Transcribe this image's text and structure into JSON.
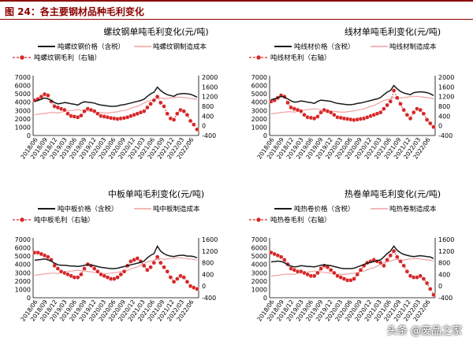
{
  "figure": {
    "title": "图 24：各主要钢材品种毛利变化",
    "watermark": "头条 @废品之家",
    "colors": {
      "price": "#1a1a1a",
      "cost": "#f0a0a0",
      "profit": "#d62728",
      "heading": "#8B0000"
    }
  },
  "chart_data": [
    {
      "type": "line",
      "title": "螺纹钢单吨毛利变化(元/吨)",
      "legend": [
        "吨螺纹钢价格（含税）",
        "吨螺纹钢制造成本",
        "吨螺纹钢毛利（右轴）"
      ],
      "x_ticks": [
        "2018/06",
        "2018/09",
        "2018/12",
        "2019/03",
        "2019/06",
        "2019/09",
        "2019/12",
        "2020/03",
        "2020/06",
        "2020/09",
        "2020/12",
        "2021/03",
        "2021/06",
        "2021/09",
        "2021/12",
        "2022/03",
        "2022/06"
      ],
      "y_left": {
        "ticks": [
          "0",
          "1000",
          "2000",
          "3000",
          "4000",
          "5000",
          "6000",
          "7000"
        ],
        "range": [
          0,
          7000
        ]
      },
      "y_right": {
        "ticks": [
          "-400",
          "0",
          "400",
          "800",
          "1200",
          "1600",
          "2000"
        ],
        "range": [
          -400,
          2000
        ]
      },
      "series": [
        {
          "name": "吨螺纹钢价格（含税）",
          "axis": "left",
          "values": [
            4100,
            4200,
            4350,
            4500,
            4400,
            4200,
            3950,
            3800,
            3850,
            3950,
            3900,
            3800,
            3750,
            3650,
            3900,
            4050,
            4000,
            3950,
            3900,
            3750,
            3650,
            3600,
            3550,
            3500,
            3500,
            3550,
            3650,
            3700,
            3800,
            3900,
            4000,
            4100,
            4200,
            4350,
            4700,
            5000,
            5200,
            5800,
            5400,
            5100,
            4900,
            4800,
            4700,
            4950,
            5000,
            5050,
            5000,
            4950,
            4800,
            4600
          ]
        },
        {
          "name": "吨螺纹钢制造成本",
          "axis": "left",
          "values": [
            2500,
            2550,
            2600,
            2650,
            2700,
            2750,
            2750,
            2700,
            2800,
            2900,
            2950,
            3000,
            3050,
            3100,
            3050,
            3000,
            2950,
            2900,
            2850,
            2800,
            2750,
            2700,
            2700,
            2750,
            2800,
            2850,
            2950,
            3000,
            3100,
            3250,
            3400,
            3500,
            3700,
            3900,
            4100,
            4200,
            4300,
            4450,
            4500,
            4400,
            4450,
            4500,
            4550,
            4600,
            4600,
            4550,
            4500,
            4450,
            4400,
            4300
          ]
        },
        {
          "name": "吨螺纹钢毛利（右轴）",
          "axis": "right",
          "values": [
            1050,
            1100,
            1200,
            1300,
            1250,
            1000,
            800,
            750,
            700,
            650,
            500,
            400,
            380,
            350,
            420,
            600,
            700,
            650,
            600,
            500,
            400,
            380,
            350,
            320,
            300,
            280,
            300,
            320,
            350,
            400,
            450,
            500,
            550,
            600,
            750,
            900,
            1050,
            1200,
            950,
            800,
            500,
            300,
            250,
            500,
            650,
            600,
            450,
            200,
            50,
            -150
          ]
        }
      ]
    },
    {
      "type": "line",
      "title": "线材单吨毛利变化(元/吨)",
      "legend": [
        "吨线材价格（含税）",
        "吨线材制造成本",
        "吨线材毛利（右轴）"
      ],
      "x_ticks": [
        "2018/06",
        "2018/09",
        "2018/12",
        "2019/03",
        "2019/06",
        "2019/09",
        "2019/12",
        "2020/03",
        "2020/06",
        "2020/09",
        "2020/12",
        "2021/03",
        "2021/06",
        "2021/09",
        "2021/12",
        "2022/03",
        "2022/06"
      ],
      "y_left": {
        "ticks": [
          "0",
          "1000",
          "2000",
          "3000",
          "4000",
          "5000",
          "6000",
          "7000"
        ],
        "range": [
          0,
          7000
        ]
      },
      "y_right": {
        "ticks": [
          "-400",
          "0",
          "400",
          "800",
          "1200",
          "1600",
          "2000"
        ],
        "range": [
          -400,
          2000
        ]
      },
      "series": [
        {
          "name": "吨线材价格（含税）",
          "axis": "left",
          "values": [
            4300,
            4400,
            4550,
            4700,
            4600,
            4400,
            4150,
            4000,
            4050,
            4150,
            4100,
            4000,
            3950,
            3850,
            4100,
            4250,
            4200,
            4150,
            4100,
            3950,
            3850,
            3800,
            3750,
            3700,
            3700,
            3750,
            3850,
            3900,
            4000,
            4100,
            4200,
            4300,
            4400,
            4550,
            4900,
            5200,
            5400,
            6000,
            5600,
            5300,
            5100,
            5000,
            4900,
            5150,
            5200,
            5250,
            5200,
            5150,
            5000,
            4800
          ]
        },
        {
          "name": "吨线材制造成本",
          "axis": "left",
          "values": [
            2600,
            2650,
            2700,
            2750,
            2800,
            2850,
            2850,
            2800,
            2900,
            3000,
            3050,
            3100,
            3150,
            3200,
            3150,
            3100,
            3050,
            3000,
            2950,
            2900,
            2850,
            2800,
            2800,
            2850,
            2900,
            2950,
            3050,
            3100,
            3200,
            3350,
            3500,
            3600,
            3800,
            4000,
            4200,
            4300,
            4400,
            4550,
            4600,
            4500,
            4550,
            4600,
            4650,
            4700,
            4700,
            4650,
            4600,
            4550,
            4500,
            4400
          ]
        },
        {
          "name": "吨线材毛利（右轴）",
          "axis": "right",
          "values": [
            1000,
            1050,
            1150,
            1250,
            1200,
            950,
            750,
            700,
            650,
            600,
            450,
            350,
            330,
            300,
            380,
            550,
            650,
            600,
            550,
            450,
            350,
            330,
            300,
            280,
            260,
            240,
            260,
            280,
            300,
            350,
            400,
            450,
            500,
            550,
            700,
            850,
            1000,
            1450,
            1150,
            900,
            650,
            450,
            300,
            550,
            700,
            650,
            500,
            250,
            100,
            -50
          ]
        }
      ]
    },
    {
      "type": "line",
      "title": "中板单吨毛利变化(元/吨)",
      "legend": [
        "吨中板价格（含税）",
        "吨中板制造成本",
        "吨中板毛利（右轴）"
      ],
      "x_ticks": [
        "2018/06",
        "2018/09",
        "2018/12",
        "2019/03",
        "2019/06",
        "2019/09",
        "2019/12",
        "2020/03",
        "2020/06",
        "2020/09",
        "2020/12",
        "2021/03",
        "2021/06",
        "2021/09",
        "2021/12",
        "2022/03",
        "2022/06"
      ],
      "y_left": {
        "ticks": [
          "0",
          "1000",
          "2000",
          "3000",
          "4000",
          "5000",
          "6000",
          "7000"
        ],
        "range": [
          0,
          7000
        ]
      },
      "y_right": {
        "ticks": [
          "-400",
          "0",
          "400",
          "800",
          "1200",
          "1600"
        ],
        "range": [
          -400,
          1600
        ]
      },
      "series": [
        {
          "name": "吨中板价格（含税）",
          "axis": "left",
          "values": [
            4500,
            4550,
            4600,
            4650,
            4550,
            4400,
            4150,
            3950,
            3900,
            3900,
            3850,
            3800,
            3800,
            3750,
            3800,
            3900,
            3950,
            3900,
            3850,
            3750,
            3650,
            3600,
            3550,
            3500,
            3500,
            3550,
            3650,
            3750,
            3850,
            3950,
            4050,
            4150,
            4250,
            4400,
            4800,
            5100,
            5300,
            6200,
            5600,
            5300,
            5100,
            5000,
            4950,
            5050,
            5100,
            5100,
            5000,
            5000,
            4950,
            4800
          ]
        },
        {
          "name": "吨中板制造成本",
          "axis": "left",
          "values": [
            2700,
            2750,
            2800,
            2850,
            2900,
            2950,
            2950,
            2900,
            3000,
            3100,
            3150,
            3200,
            3250,
            3300,
            3250,
            3200,
            3150,
            3100,
            3050,
            3000,
            2950,
            2900,
            2900,
            2950,
            3000,
            3050,
            3150,
            3200,
            3300,
            3450,
            3600,
            3700,
            3900,
            4100,
            4300,
            4400,
            4500,
            4650,
            4700,
            4600,
            4650,
            4700,
            4750,
            4800,
            4800,
            4750,
            4700,
            4650,
            4600,
            4500
          ]
        },
        {
          "name": "吨中板毛利（右轴）",
          "axis": "right",
          "values": [
            1150,
            1150,
            1100,
            1050,
            1000,
            900,
            700,
            600,
            500,
            450,
            400,
            350,
            300,
            300,
            400,
            600,
            750,
            700,
            600,
            500,
            400,
            350,
            300,
            250,
            250,
            300,
            400,
            500,
            700,
            850,
            900,
            950,
            850,
            700,
            550,
            650,
            800,
            1000,
            800,
            650,
            500,
            300,
            150,
            250,
            350,
            300,
            150,
            0,
            -50,
            -100
          ]
        }
      ]
    },
    {
      "type": "line",
      "title": "热卷单吨毛利变化(元/吨)",
      "legend": [
        "吨热卷价格（含税）",
        "吨热卷制造成本",
        "吨热卷毛利（右轴）"
      ],
      "x_ticks": [
        "2018/06",
        "2018/09",
        "2018/12",
        "2019/03",
        "2019/06",
        "2019/09",
        "2019/12",
        "2020/03",
        "2020/06",
        "2020/09",
        "2020/12",
        "2021/03",
        "2021/06",
        "2021/09",
        "2021/12",
        "2022/03",
        "2022/06"
      ],
      "y_left": {
        "ticks": [
          "0",
          "1000",
          "2000",
          "3000",
          "4000",
          "5000",
          "6000",
          "7000"
        ],
        "range": [
          0,
          7000
        ]
      },
      "y_right": {
        "ticks": [
          "-400",
          "0",
          "400",
          "800",
          "1200",
          "1600"
        ],
        "range": [
          -400,
          1600
        ]
      },
      "series": [
        {
          "name": "吨热卷价格（含税）",
          "axis": "left",
          "values": [
            4300,
            4350,
            4400,
            4350,
            4200,
            3950,
            3800,
            3700,
            3750,
            3850,
            3800,
            3750,
            3750,
            3700,
            3800,
            3900,
            3950,
            3900,
            3850,
            3750,
            3650,
            3550,
            3500,
            3500,
            3500,
            3550,
            3700,
            3850,
            4000,
            4150,
            4250,
            4350,
            4450,
            4550,
            4900,
            5300,
            5600,
            6200,
            5700,
            5400,
            5200,
            5100,
            5000,
            4950,
            5000,
            5050,
            5000,
            4950,
            4900,
            4700
          ]
        },
        {
          "name": "吨热卷制造成本",
          "axis": "left",
          "values": [
            2600,
            2650,
            2700,
            2750,
            2800,
            2850,
            2850,
            2800,
            2900,
            3000,
            3050,
            3100,
            3150,
            3200,
            3150,
            3100,
            3050,
            3000,
            2950,
            2900,
            2850,
            2800,
            2800,
            2850,
            2900,
            2950,
            3050,
            3100,
            3200,
            3350,
            3500,
            3600,
            3800,
            4000,
            4200,
            4300,
            4400,
            4550,
            4600,
            4500,
            4550,
            4600,
            4650,
            4700,
            4700,
            4650,
            4600,
            4550,
            4500,
            4400
          ]
        },
        {
          "name": "吨热卷毛利（右轴）",
          "axis": "right",
          "values": [
            1150,
            1100,
            1050,
            1000,
            900,
            750,
            600,
            550,
            500,
            500,
            450,
            400,
            350,
            350,
            450,
            600,
            700,
            650,
            550,
            450,
            350,
            300,
            250,
            200,
            200,
            250,
            400,
            550,
            700,
            800,
            850,
            900,
            850,
            800,
            700,
            900,
            1050,
            1200,
            1000,
            850,
            700,
            500,
            350,
            300,
            300,
            350,
            250,
            100,
            -100,
            -300
          ]
        }
      ]
    }
  ]
}
